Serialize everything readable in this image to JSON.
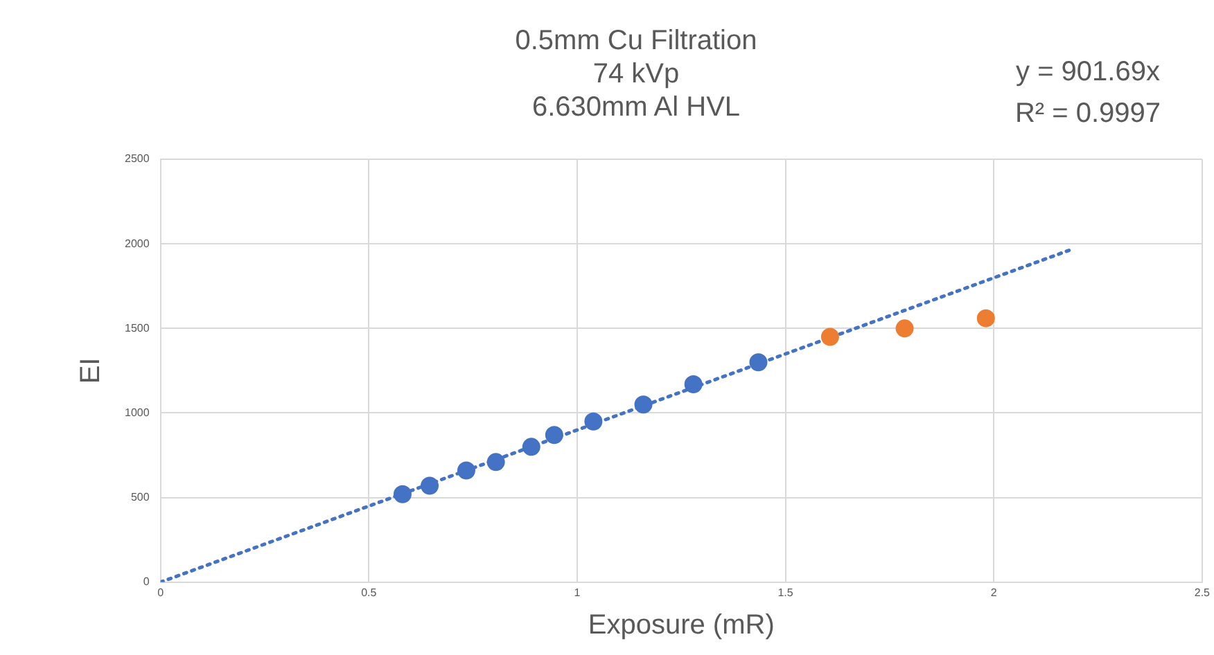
{
  "chart_data": {
    "type": "scatter",
    "title": "0.5mm Cu Filtration\n74 kVp\n6.630mm Al HVL",
    "xlabel": "Exposure (mR)",
    "ylabel": "EI",
    "annotations": [
      "y = 901.69x",
      "R² = 0.9997"
    ],
    "series": [
      {
        "color": "#4472c4",
        "x": [
          0.581,
          0.646,
          0.734,
          0.805,
          0.89,
          0.945,
          1.039,
          1.159,
          1.279,
          1.435
        ],
        "values": [
          520,
          570,
          660,
          710,
          800,
          870,
          950,
          1050,
          1170,
          1300
        ]
      },
      {
        "color": "#ed7d31",
        "x": [
          1.607,
          1.786,
          1.981
        ],
        "values": [
          1450,
          1500,
          1560
        ]
      },
      {
        "type": "line",
        "line_style": "dotted",
        "marker": "none",
        "color": "#4472c4",
        "x": [
          0,
          2.19
        ],
        "values": [
          0,
          1970
        ]
      }
    ],
    "marker": "circle",
    "xlim": [
      0,
      2.5
    ],
    "ylim": [
      0,
      2500
    ],
    "xticks": [
      0,
      0.5,
      1,
      1.5,
      2,
      2.5
    ],
    "yticks": [
      0,
      500,
      1000,
      1500,
      2000,
      2500
    ],
    "grid": true,
    "legend": false
  }
}
